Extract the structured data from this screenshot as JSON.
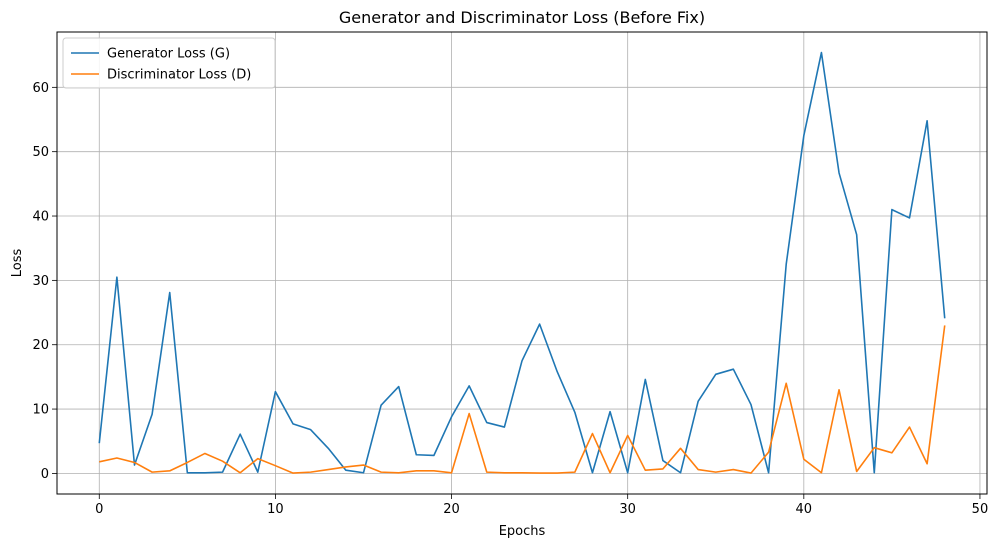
{
  "chart_data": {
    "type": "line",
    "title": "Generator and Discriminator Loss (Before Fix)",
    "xlabel": "Epochs",
    "ylabel": "Loss",
    "xlim": [
      -2.4,
      50.4
    ],
    "ylim": [
      -3.2,
      68.6
    ],
    "xticks": [
      0,
      10,
      20,
      30,
      40,
      50
    ],
    "yticks": [
      0,
      10,
      20,
      30,
      40,
      50,
      60
    ],
    "grid": true,
    "legend_position": "top-left",
    "x": [
      0,
      1,
      2,
      3,
      4,
      5,
      6,
      7,
      8,
      9,
      10,
      11,
      12,
      13,
      14,
      15,
      16,
      17,
      18,
      19,
      20,
      21,
      22,
      23,
      24,
      25,
      26,
      27,
      28,
      29,
      30,
      31,
      32,
      33,
      34,
      35,
      36,
      37,
      38,
      39,
      40,
      41,
      42,
      43,
      44,
      45,
      46,
      47,
      48
    ],
    "series": [
      {
        "name": "Generator Loss (G)",
        "color": "#1f77b4",
        "values": [
          4.7,
          30.5,
          1.3,
          9.2,
          28.1,
          0.1,
          0.1,
          0.2,
          6.1,
          0.2,
          12.7,
          7.7,
          6.8,
          3.9,
          0.5,
          0.1,
          10.6,
          13.5,
          2.9,
          2.8,
          8.8,
          13.6,
          7.9,
          7.2,
          17.5,
          23.2,
          15.8,
          9.5,
          0.1,
          9.6,
          0.1,
          14.6,
          2.0,
          0.1,
          11.2,
          15.4,
          16.2,
          10.7,
          0.1,
          32.5,
          52.5,
          65.4,
          46.7,
          37.1,
          0.1,
          41.0,
          39.7,
          54.8,
          24.1
        ]
      },
      {
        "name": "Discriminator Loss (D)",
        "color": "#ff7f0e",
        "values": [
          1.8,
          2.4,
          1.7,
          0.2,
          0.4,
          1.7,
          3.1,
          1.9,
          0.1,
          2.3,
          1.2,
          0.05,
          0.2,
          0.6,
          1.0,
          1.3,
          0.2,
          0.1,
          0.4,
          0.4,
          0.1,
          9.3,
          0.2,
          0.1,
          0.1,
          0.05,
          0.05,
          0.2,
          6.2,
          0.1,
          5.9,
          0.5,
          0.7,
          3.9,
          0.6,
          0.2,
          0.6,
          0.05,
          3.3,
          14.0,
          2.2,
          0.1,
          13.0,
          0.3,
          4.0,
          3.2,
          7.2,
          1.5,
          23.0
        ]
      }
    ]
  }
}
